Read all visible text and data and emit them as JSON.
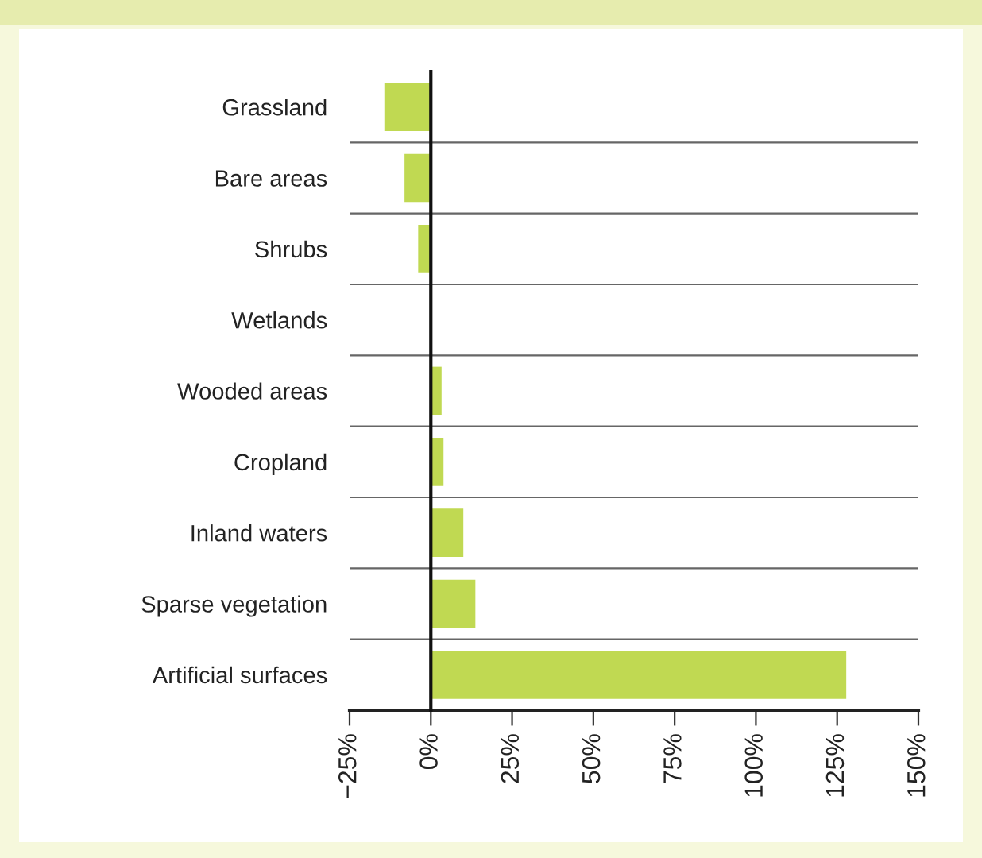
{
  "chart_data": {
    "type": "bar",
    "orientation": "horizontal",
    "categories": [
      "Grassland",
      "Bare areas",
      "Shrubs",
      "Wetlands",
      "Wooded areas",
      "Cropland",
      "Inland waters",
      "Sparse vegetation",
      "Artificial surfaces"
    ],
    "values": [
      -14.3,
      -8.1,
      -3.9,
      0,
      3.3,
      3.9,
      10,
      13.7,
      127.8
    ],
    "color": "#c0d952",
    "xlim": [
      -25,
      150
    ],
    "xticks": [
      {
        "value": -25,
        "label": "−25%"
      },
      {
        "value": 0,
        "label": "0%"
      },
      {
        "value": 25,
        "label": "25%"
      },
      {
        "value": 50,
        "label": "50%"
      },
      {
        "value": 75,
        "label": "75%"
      },
      {
        "value": 100,
        "label": "100%"
      },
      {
        "value": 125,
        "label": "125%"
      },
      {
        "value": 150,
        "label": "150%"
      }
    ],
    "grid": "y"
  }
}
